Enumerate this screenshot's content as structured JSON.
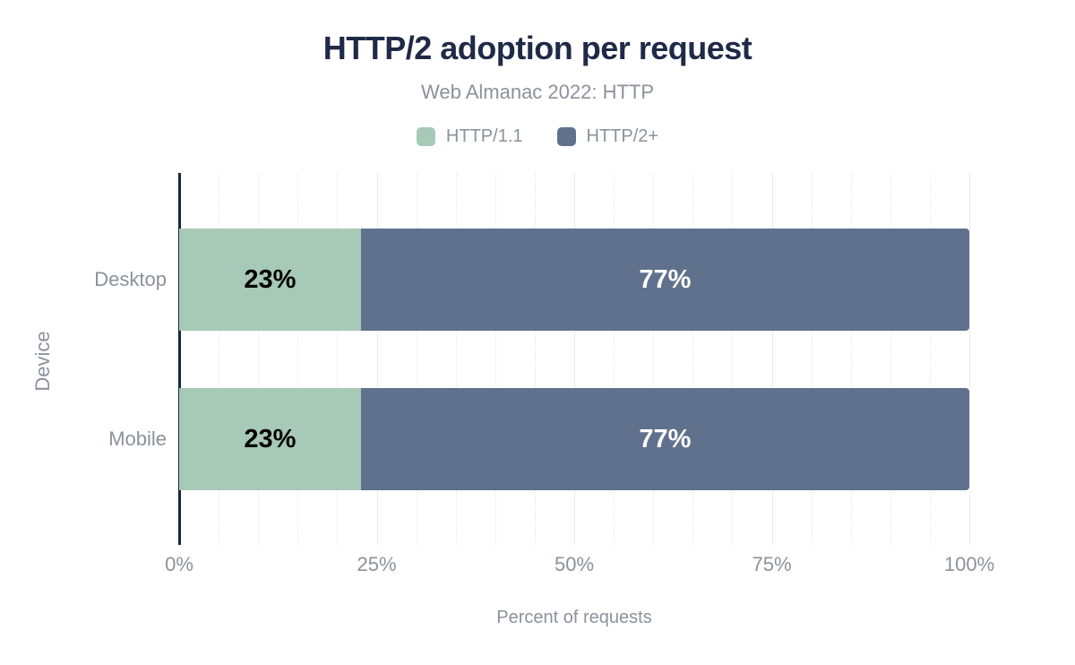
{
  "chart_data": {
    "type": "bar",
    "orientation": "horizontal",
    "stacked": true,
    "title": "HTTP/2 adoption per request",
    "subtitle": "Web Almanac 2022: HTTP",
    "categories": [
      "Desktop",
      "Mobile"
    ],
    "series": [
      {
        "name": "HTTP/1.1",
        "color": "#a7c9b8",
        "values": [
          23,
          23
        ],
        "labels": [
          "23%",
          "23%"
        ],
        "label_color": "#000000"
      },
      {
        "name": "HTTP/2+",
        "color": "#5f718c",
        "values": [
          77,
          77
        ],
        "labels": [
          "77%",
          "77%"
        ],
        "label_color": "#ffffff"
      }
    ],
    "xlabel": "Percent of requests",
    "ylabel": "Device",
    "xlim": [
      0,
      100
    ],
    "xticks": [
      {
        "label": "0%",
        "value": 0
      },
      {
        "label": "25%",
        "value": 25
      },
      {
        "label": "50%",
        "value": 50
      },
      {
        "label": "75%",
        "value": 75
      },
      {
        "label": "100%",
        "value": 100
      }
    ],
    "minor_grid_step": 5,
    "major_grid_step": 25,
    "grid": true,
    "legend_position": "top"
  },
  "colors": {
    "background": "#ffffff",
    "title": "#1f2a47",
    "subtitle": "#8b929b",
    "text_gray": "#8b929b",
    "axis_line": "#1a2642",
    "grid_major": "#e8eaed",
    "grid_minor": "#e3e6ea",
    "bar_label_dark": "#000000",
    "bar_label_light": "#ffffff"
  }
}
